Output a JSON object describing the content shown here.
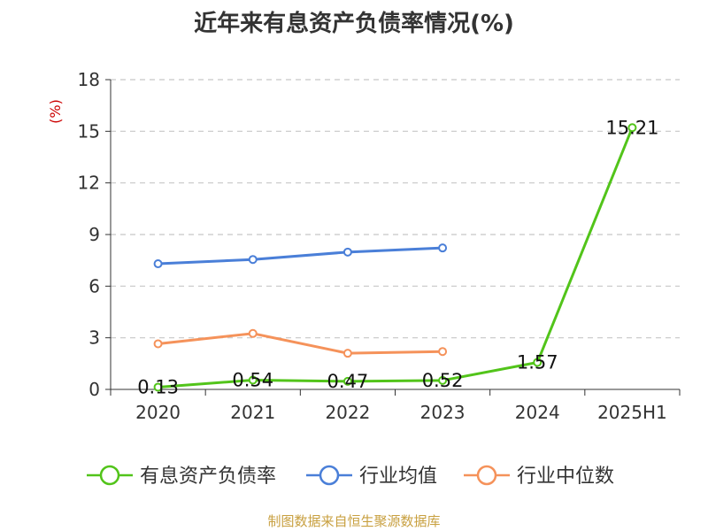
{
  "title": "近年来有息资产负债率情况(%)",
  "source": "制图数据来自恒生聚源数据库",
  "chart_data": {
    "type": "line",
    "title": "近年来有息资产负债率情况(%)",
    "ylabel": "(%)",
    "categories": [
      "2020",
      "2021",
      "2022",
      "2023",
      "2024",
      "2025H1"
    ],
    "ylim": [
      0,
      18
    ],
    "yticks": [
      0,
      3,
      6,
      9,
      12,
      15,
      18
    ],
    "grid": true,
    "legend_position": "bottom",
    "series": [
      {
        "name": "有息资产负债率",
        "color": "#52c41a",
        "values": [
          0.13,
          0.54,
          0.47,
          0.52,
          1.57,
          15.21
        ],
        "labels": [
          "0.13",
          "0.54",
          "0.47",
          "0.52",
          "1.57",
          "15.21"
        ]
      },
      {
        "name": "行业均值",
        "color": "#4a7fd8",
        "values": [
          7.3,
          7.55,
          7.98,
          8.22,
          null,
          null
        ]
      },
      {
        "name": "行业中位数",
        "color": "#f5925a",
        "values": [
          2.65,
          3.25,
          2.1,
          2.2,
          null,
          null
        ]
      }
    ]
  }
}
